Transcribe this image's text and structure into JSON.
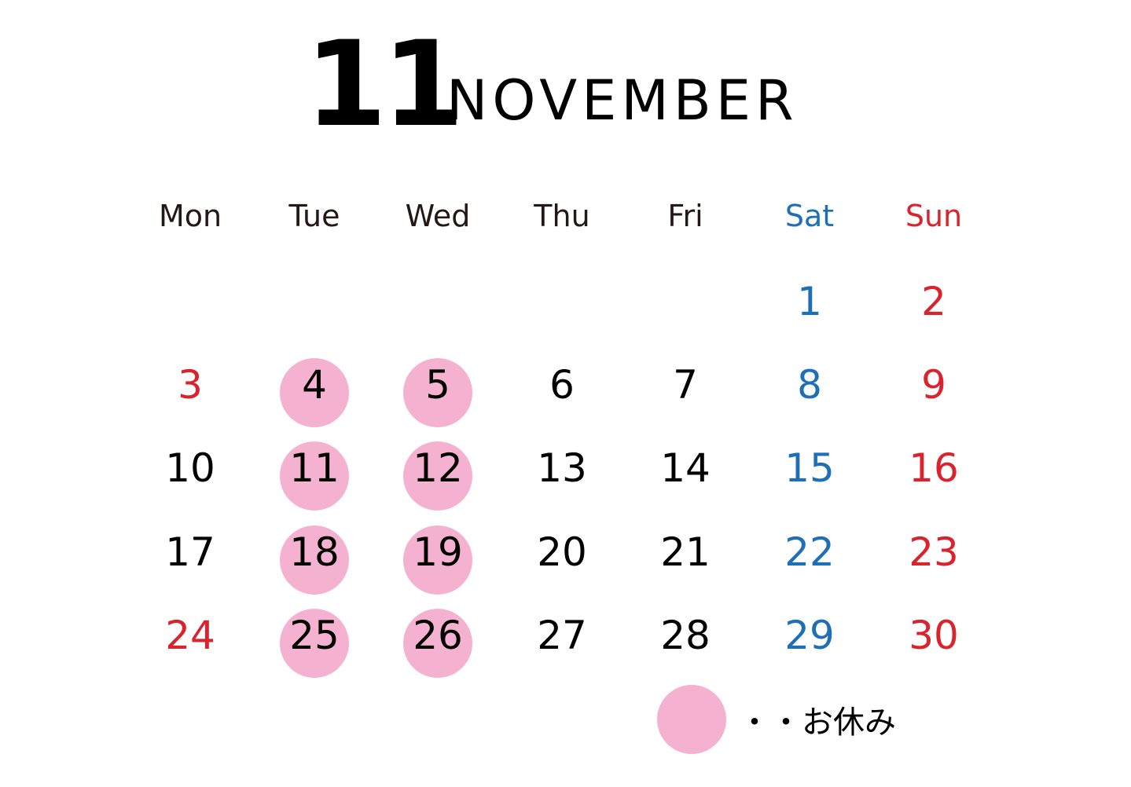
{
  "header": {
    "month_number": "11",
    "month_name": "NOVEMBER"
  },
  "weekdays": [
    {
      "label": "Mon",
      "color": "#231815"
    },
    {
      "label": "Tue",
      "color": "#231815"
    },
    {
      "label": "Wed",
      "color": "#231815"
    },
    {
      "label": "Thu",
      "color": "#231815"
    },
    {
      "label": "Fri",
      "color": "#231815"
    },
    {
      "label": "Sat",
      "color": "#1e6fb5"
    },
    {
      "label": "Sun",
      "color": "#d9232d"
    }
  ],
  "colors": {
    "weekday": "#000000",
    "saturday": "#1e6fb5",
    "sunday": "#d9232d",
    "holiday_circle": "#f5b2d0"
  },
  "weeks": [
    [
      "",
      "",
      "",
      "",
      "",
      "1",
      "2"
    ],
    [
      "3",
      "4",
      "5",
      "6",
      "7",
      "8",
      "9"
    ],
    [
      "10",
      "11",
      "12",
      "13",
      "14",
      "15",
      "16"
    ],
    [
      "17",
      "18",
      "19",
      "20",
      "21",
      "22",
      "23"
    ],
    [
      "24",
      "25",
      "26",
      "27",
      "28",
      "29",
      "30"
    ]
  ],
  "red_days": [
    "3",
    "24"
  ],
  "closed_days": [
    "4",
    "5",
    "11",
    "12",
    "18",
    "19",
    "25",
    "26"
  ],
  "legend": {
    "text": "・・お休み"
  }
}
